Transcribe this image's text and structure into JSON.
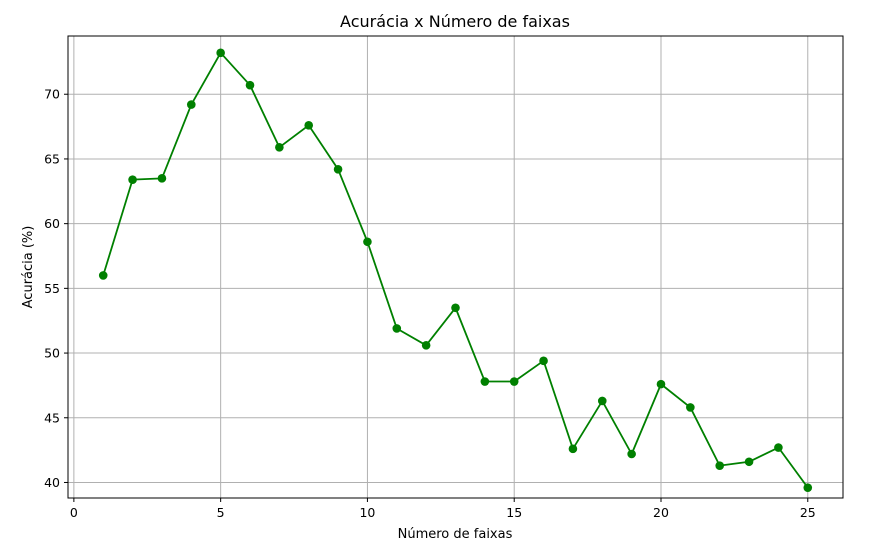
{
  "chart_data": {
    "type": "line",
    "title": "Acurácia x Número de faixas",
    "xlabel": "Número de faixas",
    "ylabel": "Acurácia (%)",
    "xlim": [
      -0.2,
      26.2
    ],
    "ylim": [
      38.8,
      74.5
    ],
    "xticks": [
      0,
      5,
      10,
      15,
      20,
      25
    ],
    "yticks": [
      40,
      45,
      50,
      55,
      60,
      65,
      70
    ],
    "grid": true,
    "colors": {
      "line": "#008000",
      "grid": "#b0b0b0"
    },
    "marker": "circle",
    "series": [
      {
        "x": [
          1,
          2,
          3,
          4,
          5,
          6,
          7,
          8,
          9,
          10,
          11,
          12,
          13,
          14,
          15,
          16,
          17,
          18,
          19,
          20,
          21,
          22,
          23,
          24,
          25
        ],
        "y": [
          56.0,
          63.4,
          63.5,
          69.2,
          73.2,
          70.7,
          65.9,
          67.6,
          64.2,
          58.6,
          51.9,
          50.6,
          53.5,
          47.8,
          47.8,
          49.4,
          42.6,
          46.3,
          42.2,
          47.6,
          45.8,
          41.3,
          41.6,
          42.7,
          39.6
        ]
      }
    ]
  }
}
